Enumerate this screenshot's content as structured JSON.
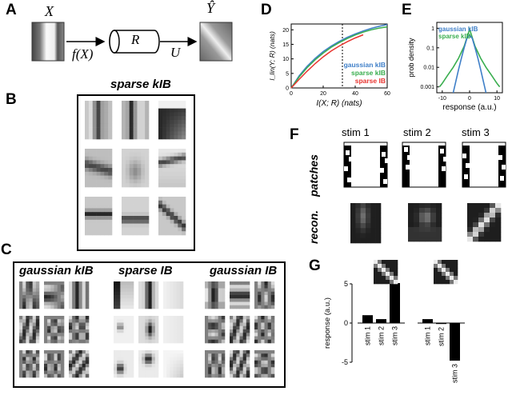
{
  "panel_labels": {
    "A": "A",
    "B": "B",
    "C": "C",
    "D": "D",
    "E": "E",
    "F": "F",
    "G": "G"
  },
  "panel_a": {
    "x_label": "X",
    "fx_label": "f(X)",
    "r_label": "R",
    "u_label": "U",
    "yhat_label": "Ŷ"
  },
  "panel_b": {
    "title": "sparse kIB"
  },
  "panel_c": {
    "titles": [
      "gaussian kIB",
      "sparse IB",
      "gaussian IB"
    ]
  },
  "panel_f": {
    "stim_labels": [
      "stim 1",
      "stim 2",
      "stim 3"
    ],
    "row_labels": [
      "patches",
      "recon."
    ]
  },
  "chart_data": [
    {
      "panel": "D",
      "type": "line",
      "xlabel": "I(X; R)  (nats)",
      "ylabel": "I_lin(Y; R)  (nats)",
      "xlim": [
        0,
        60
      ],
      "ylim": [
        0,
        22
      ],
      "xticks": [
        0,
        20,
        40,
        60
      ],
      "yticks": [
        0,
        5,
        10,
        15,
        20
      ],
      "vline_x": 32,
      "legend": "lower-right",
      "series": [
        {
          "name": "gaussian kIB",
          "color": "#3f7fc8",
          "x": [
            0,
            5,
            10,
            15,
            20,
            25,
            30,
            35,
            40,
            45,
            50,
            55,
            60
          ],
          "y": [
            0,
            4.2,
            7.5,
            10.2,
            12.5,
            14.4,
            16.0,
            17.4,
            18.6,
            19.6,
            20.5,
            21.2,
            21.8
          ]
        },
        {
          "name": "sparse kIB",
          "color": "#3aae4f",
          "x": [
            0,
            5,
            10,
            15,
            20,
            25,
            30,
            35,
            40,
            45,
            50,
            55,
            60
          ],
          "y": [
            0,
            3.8,
            7.0,
            9.7,
            12.0,
            14.0,
            15.6,
            17.0,
            18.2,
            19.2,
            20.0,
            20.6,
            21.0
          ]
        },
        {
          "name": "sparse IB",
          "color": "#e8342f",
          "x": [
            0,
            5,
            10,
            15,
            20,
            25,
            30,
            35,
            40,
            45
          ],
          "y": [
            0,
            3.0,
            5.8,
            8.4,
            10.7,
            12.7,
            14.4,
            15.9,
            17.2,
            18.3
          ]
        }
      ]
    },
    {
      "panel": "E",
      "type": "line",
      "xlabel": "response (a.u.)",
      "ylabel": "prob density",
      "xlim": [
        -12,
        12
      ],
      "yscale": "log",
      "ylim": [
        0.0005,
        2
      ],
      "xticks": [
        -10,
        0,
        10
      ],
      "yticks": [
        1,
        0.1,
        0.01,
        0.001
      ],
      "yticklabels": [
        "1",
        "0.1",
        "0.01",
        "0.001"
      ],
      "legend": "top-left",
      "series": [
        {
          "name": "gaussian kIB",
          "color": "#3f7fc8",
          "x": [
            -6,
            -5,
            -4,
            -3,
            -2,
            -1,
            0,
            1,
            2,
            3,
            4,
            5,
            6
          ],
          "y": [
            0.0005,
            0.002,
            0.008,
            0.03,
            0.1,
            0.3,
            0.45,
            0.3,
            0.1,
            0.03,
            0.008,
            0.002,
            0.0005
          ]
        },
        {
          "name": "sparse kIB",
          "color": "#3aae4f",
          "x": [
            -11,
            -10,
            -8,
            -6,
            -4,
            -2,
            0,
            2,
            4,
            6,
            8,
            10,
            11
          ],
          "y": [
            0.001,
            0.0015,
            0.004,
            0.01,
            0.03,
            0.12,
            0.9,
            0.12,
            0.03,
            0.01,
            0.004,
            0.0015,
            0.001
          ]
        }
      ]
    },
    {
      "panel": "G",
      "type": "bar",
      "ylabel": "response (a.u.)",
      "ylim": [
        -5,
        5
      ],
      "yticks": [
        -5,
        0,
        5
      ],
      "groups": [
        {
          "categories": [
            "stim 1",
            "stim 2",
            "stim 3"
          ],
          "values": [
            1.0,
            0.5,
            5.1
          ]
        },
        {
          "categories": [
            "stim 1",
            "stim 2",
            "stim 3"
          ],
          "values": [
            0.5,
            -0.1,
            -4.8
          ]
        }
      ]
    }
  ]
}
